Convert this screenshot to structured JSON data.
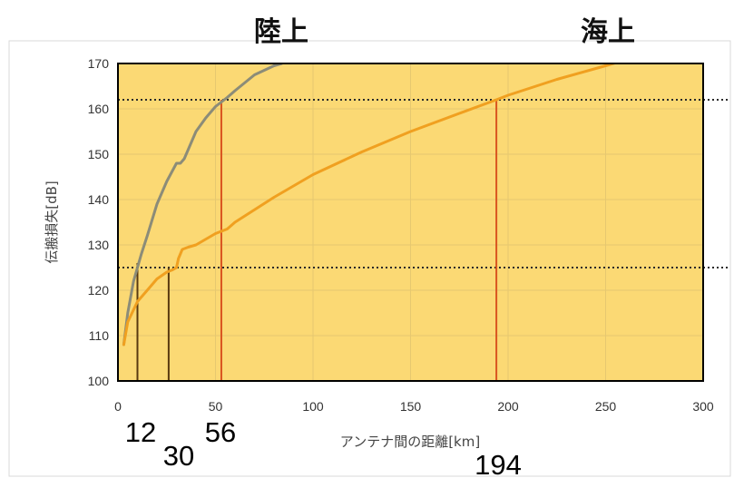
{
  "chart_data": {
    "type": "line",
    "xlabel": "アンテナ間の距離[km]",
    "ylabel": "伝搬損失[dB]",
    "xlim": [
      0,
      300
    ],
    "ylim": [
      100,
      170
    ],
    "x_ticks": [
      "0",
      "50",
      "100",
      "150",
      "200",
      "250",
      "300"
    ],
    "y_ticks": [
      "100",
      "110",
      "120",
      "130",
      "140",
      "150",
      "160",
      "170"
    ],
    "grid": true,
    "region_labels": [
      "陸上",
      "海上"
    ],
    "series": [
      {
        "color": "#8c8c78",
        "x": [
          3,
          5,
          8,
          10,
          12,
          15,
          20,
          25,
          30,
          32,
          34,
          40,
          45,
          50,
          56,
          60,
          70,
          80,
          84
        ],
        "y": [
          108,
          115,
          122,
          125,
          128,
          132,
          139,
          144,
          148,
          148,
          149,
          155,
          158,
          160.5,
          162.5,
          164,
          167.5,
          169.5,
          170
        ]
      },
      {
        "color": "#f0a020",
        "x": [
          3,
          5,
          10,
          15,
          20,
          25,
          28,
          30,
          31,
          33,
          36,
          40,
          50,
          56,
          60,
          80,
          100,
          125,
          150,
          175,
          194,
          200,
          225,
          250,
          258
        ],
        "y": [
          108,
          113,
          117.5,
          120,
          122.5,
          124,
          124.5,
          125,
          127,
          129,
          129.5,
          130,
          132.5,
          133.5,
          135,
          140.5,
          145.5,
          150.5,
          155,
          159,
          162,
          163,
          166.5,
          169.5,
          170.5
        ]
      }
    ],
    "reference_lines": {
      "horizontal": [
        162,
        125
      ],
      "vertical": [
        {
          "x": 10,
          "y": 126,
          "color": "#5a3a10"
        },
        {
          "x": 26,
          "y": 125,
          "color": "#5a3a10"
        },
        {
          "x": 53,
          "y": 162,
          "color": "#d9541f"
        },
        {
          "x": 194,
          "y": 162,
          "color": "#d9541f"
        }
      ]
    },
    "callouts": [
      "12",
      "30",
      "56",
      "194"
    ],
    "colors": {
      "plot_background": "#fbd974",
      "outer_background": "#ffffff",
      "grid": "#e6c870",
      "reference_dotted": "#2a2a2a"
    }
  }
}
